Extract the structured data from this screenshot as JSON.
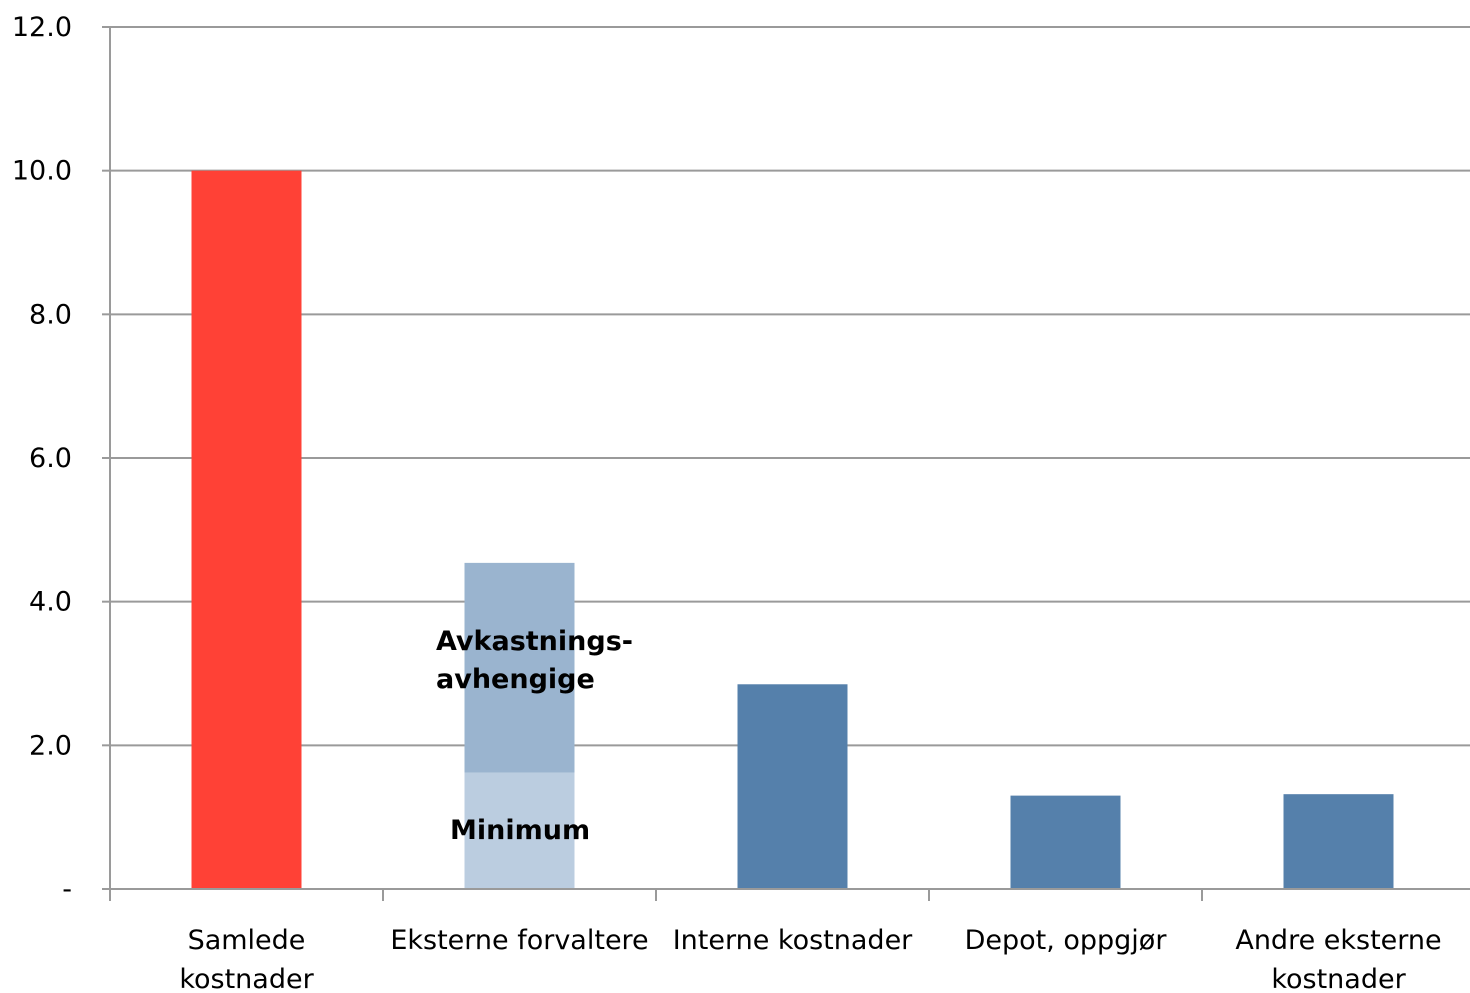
{
  "chart_data": {
    "type": "bar",
    "stacked": true,
    "categories": [
      [
        "Samlede",
        "kostnader"
      ],
      [
        "Eksterne forvaltere"
      ],
      [
        "Interne kostnader"
      ],
      [
        "Depot, oppgjør"
      ],
      [
        "Andre eksterne",
        "kostnader"
      ]
    ],
    "series": [
      {
        "values": [
          10.0,
          0,
          2.85,
          1.3,
          1.32
        ],
        "colors": [
          "#ff4136",
          "#5580ab",
          "#5580ab",
          "#5580ab",
          "#5580ab"
        ]
      },
      {
        "name": "Minimum",
        "values": [
          0,
          1.62,
          0,
          0,
          0
        ],
        "color": "#bbcde0"
      },
      {
        "name": "Avkastnings-avhengige",
        "values": [
          0,
          2.92,
          0,
          0,
          0
        ],
        "color": "#9ab4cf"
      }
    ],
    "segment_labels": [
      {
        "category_index": 1,
        "lines": [
          "Minimum"
        ]
      },
      {
        "category_index": 1,
        "lines": [
          "Avkastnings-",
          "avhengige"
        ]
      }
    ],
    "ylim": [
      0,
      12
    ],
    "yticks": [
      {
        "value": 0,
        "label": "-"
      },
      {
        "value": 2,
        "label": "2.0"
      },
      {
        "value": 4,
        "label": "4.0"
      },
      {
        "value": 6,
        "label": "6.0"
      },
      {
        "value": 8,
        "label": "8.0"
      },
      {
        "value": 10,
        "label": "10.0"
      },
      {
        "value": 12,
        "label": "12.0"
      }
    ],
    "grid": true,
    "title": "",
    "xlabel": "",
    "ylabel": "",
    "colors": {
      "grid": "#9a9a9a",
      "axis": "#9a9a9a"
    }
  }
}
